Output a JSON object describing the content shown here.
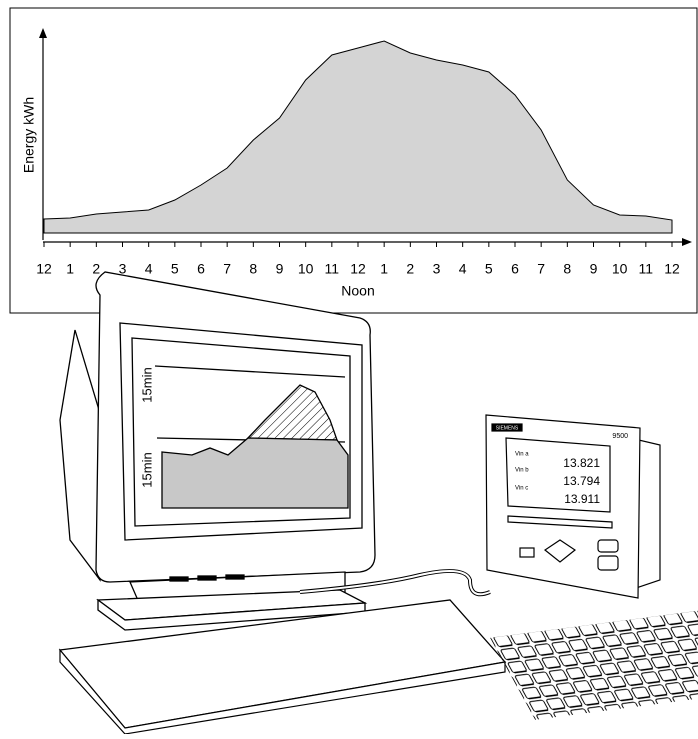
{
  "chart_data": {
    "type": "area",
    "y_label": "Energy kWh",
    "x_note": "Noon",
    "categories": [
      "12",
      "1",
      "2",
      "3",
      "4",
      "5",
      "6",
      "7",
      "8",
      "9",
      "10",
      "11",
      "12",
      "1",
      "2",
      "3",
      "4",
      "5",
      "6",
      "7",
      "8",
      "9",
      "10",
      "11",
      "12"
    ],
    "values": [
      7,
      7.5,
      9.5,
      10.5,
      11.5,
      16.5,
      24,
      32.5,
      46.5,
      57.5,
      76.5,
      89,
      92.5,
      96,
      90,
      86.5,
      84,
      80.5,
      69,
      51.5,
      26.5,
      14,
      9,
      8.5,
      6.5
    ],
    "color": "#d4d4d4",
    "ylim": [
      0,
      100
    ]
  },
  "illustration": {
    "monitor_labels": [
      "15min",
      "15min"
    ],
    "meter": {
      "brand": "SIEMENS",
      "model": "9500",
      "rows": [
        [
          "Vin a",
          "13.821"
        ],
        [
          "Vin b",
          "13.794"
        ],
        [
          "Vin c",
          "13.911"
        ]
      ]
    }
  }
}
